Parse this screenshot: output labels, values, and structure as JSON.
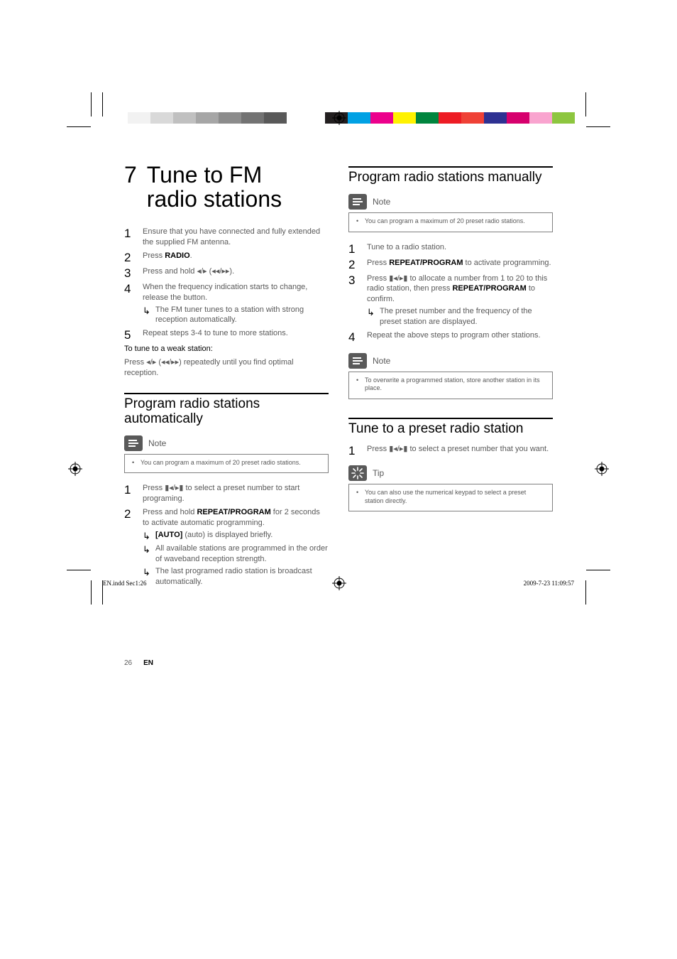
{
  "print_marks": {
    "left_gray_bar": [
      "#ffffff",
      "#f2f2f2",
      "#d9d9d9",
      "#c0c0c0",
      "#a6a6a6",
      "#8c8c8c",
      "#737373",
      "#595959"
    ],
    "right_color_bar": [
      "#231f20",
      "#00a1e4",
      "#ec008c",
      "#fff200",
      "#00853e",
      "#ed1c24",
      "#ef4136",
      "#2e3192",
      "#d6006d",
      "#f9a4cf",
      "#8dc63f"
    ]
  },
  "section": {
    "num": "7",
    "title_l1": "Tune to FM",
    "title_l2": "radio stations"
  },
  "main_steps": [
    {
      "text": "Ensure that you have connected and fully extended the supplied FM antenna."
    },
    {
      "text": "Press ",
      "bold_after": "RADIO",
      "tail": "."
    },
    {
      "text": "Press and hold ",
      "glyph_after": "◂/▸ (◂◂/▸▸)",
      "tail": "."
    },
    {
      "text": "When the frequency indication starts to change, release the button.",
      "arrows": [
        "The FM tuner tunes to a station with strong reception automatically."
      ]
    },
    {
      "text": "Repeat steps 3-4 to tune to more stations."
    }
  ],
  "weak": {
    "heading": "To tune to a weak station:",
    "line": "Press ◂/▸ (◂◂/▸▸) repeatedly until you find optimal reception."
  },
  "auto": {
    "heading": "Program radio stations automatically",
    "note_label": "Note",
    "note_text": "You can program a maximum of 20 preset radio stations.",
    "steps": [
      {
        "pre": "Press ",
        "glyph": "▮◂/▸▮",
        "post": " to select a preset number to start programing."
      },
      {
        "pre": "Press and hold ",
        "bold": "REPEAT/PROGRAM",
        "post": " for 2 seconds to activate automatic programming.",
        "arrows": [
          {
            "bold": "[AUTO]",
            "post": " (auto) is displayed briefly."
          },
          {
            "text": "All available stations are programmed in the order of waveband reception strength."
          },
          {
            "text": "The last programed radio station is broadcast automatically."
          }
        ]
      }
    ]
  },
  "manual": {
    "heading": "Program radio stations manually",
    "note_label": "Note",
    "note_text": "You can program a maximum of 20 preset radio stations.",
    "steps": [
      {
        "text": "Tune to a radio station."
      },
      {
        "pre": "Press ",
        "bold": "REPEAT/PROGRAM",
        "post": " to activate programming."
      },
      {
        "pre": "Press ",
        "glyph": "▮◂/▸▮",
        "mid": " to allocate a number from 1 to 20 to this radio station, then press ",
        "bold": "REPEAT/PROGRAM",
        "post": " to confirm.",
        "arrows": [
          {
            "text": "The preset number and the frequency of the preset station are displayed."
          }
        ]
      },
      {
        "text": "Repeat the above steps to program other stations."
      }
    ],
    "note2_label": "Note",
    "note2_text": "To overwrite a programmed station, store another station in its place."
  },
  "preset": {
    "heading": "Tune to a preset radio station",
    "step_pre": "Press ",
    "step_glyph": "▮◂/▸▮",
    "step_post": " to select a preset number that you want.",
    "tip_label": "Tip",
    "tip_text": "You can also use the numerical keypad to select a preset station directly."
  },
  "footer": {
    "page_num": "26",
    "lang": "EN",
    "meta_left": "EN.indd   Sec1:26",
    "meta_right": "2009-7-23   11:09:57"
  },
  "colors": {
    "body_text": "#595959",
    "heading_text": "#000000",
    "border": "#808080",
    "tip_bg": "#595959"
  }
}
